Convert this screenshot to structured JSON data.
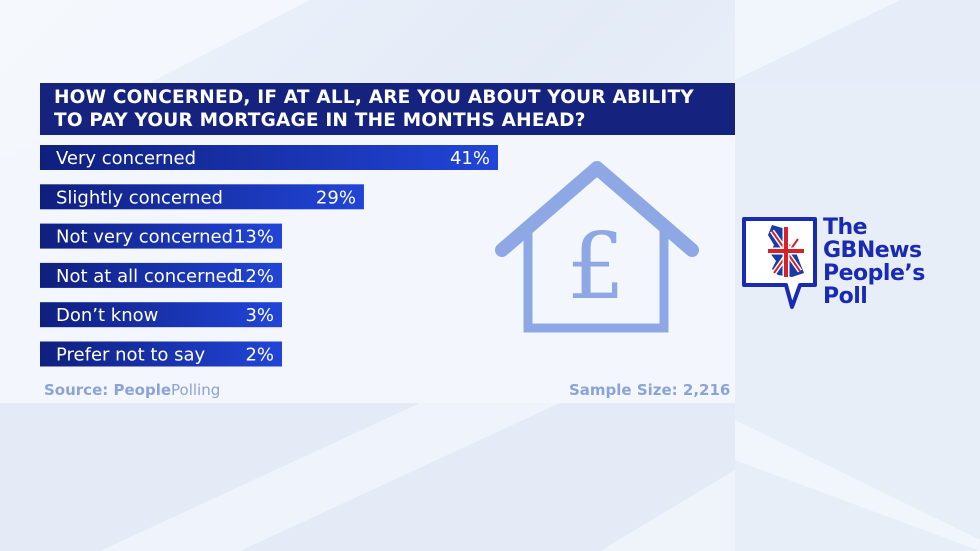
{
  "title": {
    "line1": "HOW CONCERNED, IF AT ALL, ARE YOU ABOUT YOUR ABILITY",
    "line2": "TO PAY YOUR MORTGAGE IN THE MONTHS AHEAD?"
  },
  "source": {
    "prefix": "Source: ",
    "brand_bold": "People",
    "brand_regular": "Polling"
  },
  "sample": "Sample Size: 2,216",
  "logo": {
    "line1": "The",
    "line2": "GBNews",
    "line3": "People’s",
    "line4": "Poll"
  },
  "house_icon": "house-pound-icon",
  "colors": {
    "bar_dark": "#0f1f7e",
    "bar_light": "#2145d8",
    "title_bg": "#15237e",
    "icon": "#8ea8e6",
    "logo_blue": "#1a2bb3"
  },
  "chart_data": {
    "type": "bar",
    "orientation": "horizontal",
    "categories": [
      "Very concerned",
      "Slightly concerned",
      "Not very concerned",
      "Not at all concerned",
      "Don’t know",
      "Prefer not to say"
    ],
    "values": [
      41,
      29,
      13,
      12,
      3,
      2
    ],
    "value_labels": [
      "41%",
      "29%",
      "13%",
      "12%",
      "3%",
      "2%"
    ],
    "unit": "%",
    "title": "HOW CONCERNED, IF AT ALL, ARE YOU ABOUT YOUR ABILITY TO PAY YOUR MORTGAGE IN THE MONTHS AHEAD?",
    "xlabel": "",
    "ylabel": "",
    "grid": false,
    "legend": "none"
  }
}
